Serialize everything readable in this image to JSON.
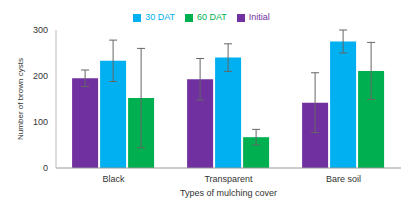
{
  "chart_data": {
    "type": "bar",
    "x_label": "Types of mulching cover",
    "y_label": "Number of brown cysts",
    "categories": [
      "Black",
      "Transparent",
      "Bare soil"
    ],
    "series": [
      {
        "name": "Initial",
        "color": "#7030a0",
        "values": [
          195,
          193,
          142
        ],
        "errors": [
          18,
          45,
          65
        ]
      },
      {
        "name": "30 DAT",
        "color": "#00b0f0",
        "values": [
          233,
          240,
          275
        ],
        "errors": [
          45,
          30,
          25
        ]
      },
      {
        "name": "60 DAT",
        "color": "#00b050",
        "values": [
          152,
          67,
          211
        ],
        "errors": [
          108,
          17,
          62
        ]
      }
    ],
    "ylim": [
      0,
      300
    ],
    "yticks": [
      0,
      100,
      200,
      300
    ],
    "grid": false,
    "legend": "top"
  }
}
